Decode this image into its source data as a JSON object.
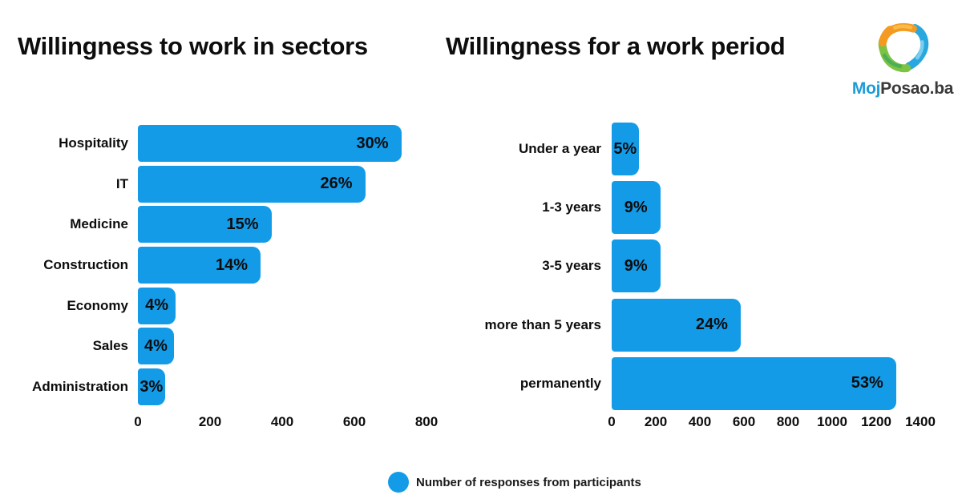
{
  "chart_data": [
    {
      "type": "bar",
      "orientation": "horizontal",
      "title": "Willingness to work in sectors",
      "categories": [
        "Hospitality",
        "IT",
        "Medicine",
        "Construction",
        "Economy",
        "Sales",
        "Administration"
      ],
      "values": [
        730,
        630,
        370,
        340,
        105,
        100,
        75
      ],
      "value_labels": [
        "30%",
        "26%",
        "15%",
        "14%",
        "4%",
        "4%",
        "3%"
      ],
      "series_name": "Number of responses from participants",
      "xlabel": "",
      "ylabel": "",
      "xlim": [
        0,
        800
      ],
      "xticks": [
        0,
        200,
        400,
        600,
        800
      ],
      "grid": false,
      "legend_position": "bottom-center",
      "bar_color": "#149be8"
    },
    {
      "type": "bar",
      "orientation": "horizontal",
      "title": "Willingness for a work period",
      "categories": [
        "Under a year",
        "1-3 years",
        "3-5 years",
        "more than 5 years",
        "permanently"
      ],
      "values": [
        122,
        220,
        220,
        585,
        1290
      ],
      "value_labels": [
        "5%",
        "9%",
        "9%",
        "24%",
        "53%"
      ],
      "series_name": "Number of responses from participants",
      "xlabel": "",
      "ylabel": "",
      "xlim": [
        0,
        1400
      ],
      "xticks": [
        0,
        200,
        400,
        600,
        800,
        1000,
        1200,
        1400
      ],
      "grid": false,
      "legend_position": "bottom-center",
      "bar_color": "#149be8"
    }
  ],
  "legend": {
    "label": "Number of responses from participants",
    "marker_color": "#149be8"
  },
  "logo": {
    "word_blue": "Moj",
    "word_dark": "Posao.ba"
  },
  "colors": {
    "bar": "#149be8",
    "text": "#0d0d0d",
    "background": "#ffffff",
    "logo_blue_text": "#1e9cd7",
    "logo_dark_text": "#3a3a39",
    "logo_orange": "#f49a20",
    "logo_orange_light": "#f8bb4a",
    "logo_blue": "#29a8e0",
    "logo_blue_light": "#7bcdee",
    "logo_green": "#7dc242",
    "logo_green_dark": "#4ab054"
  }
}
